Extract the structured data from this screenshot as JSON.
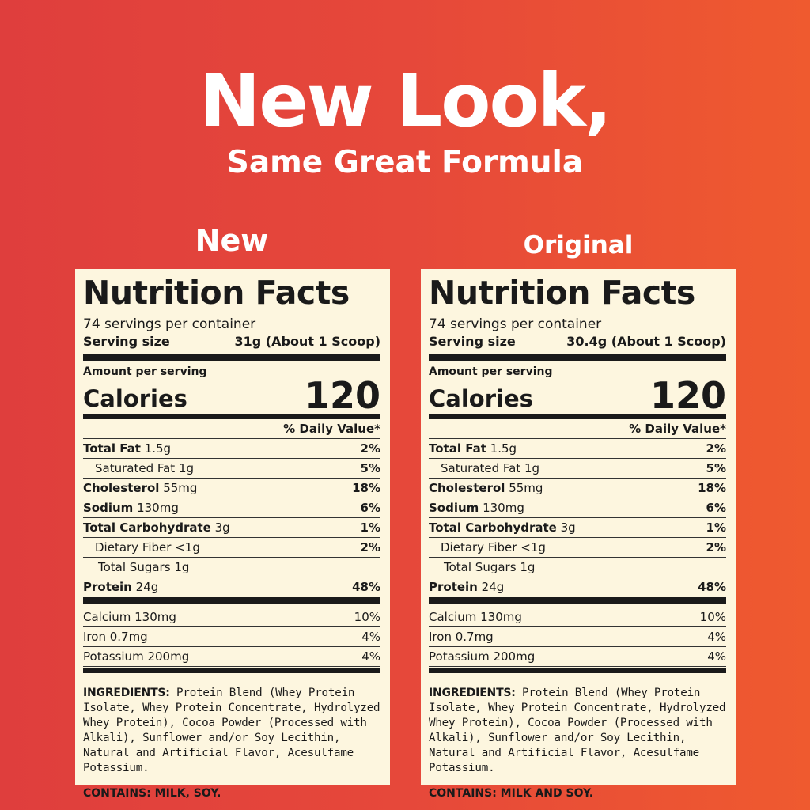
{
  "headline": "New Look,",
  "subheadline": "Same Great Formula",
  "colors": {
    "background_left": "#df3e3d",
    "background_right": "#ef5a2f",
    "label_bg": "#fdf6df"
  },
  "panels": [
    {
      "label": "New",
      "title": "Nutrition Facts",
      "servings": "74 servings per container",
      "serving_size_label": "Serving size",
      "serving_size": "31g (About 1 Scoop)",
      "amount_per_serving": "Amount per serving",
      "calories_label": "Calories",
      "calories": "120",
      "daily_value": "% Daily Value*",
      "nutrients": [
        {
          "name": "Total Fat",
          "amount": "1.5g",
          "dv": "2%",
          "bold": true,
          "indent": 0
        },
        {
          "name": "Saturated Fat",
          "amount": "1g",
          "dv": "5%",
          "bold": false,
          "indent": 1
        },
        {
          "name": "Cholesterol",
          "amount": "55mg",
          "dv": "18%",
          "bold": true,
          "indent": 0
        },
        {
          "name": "Sodium",
          "amount": "130mg",
          "dv": "6%",
          "bold": true,
          "indent": 0
        },
        {
          "name": "Total Carbohydrate",
          "amount": "3g",
          "dv": "1%",
          "bold": true,
          "indent": 0
        },
        {
          "name": "Dietary Fiber",
          "amount": "<1g",
          "dv": "2%",
          "bold": false,
          "indent": 1
        },
        {
          "name": "Total Sugars",
          "amount": "1g",
          "dv": "",
          "bold": false,
          "indent": 2
        },
        {
          "name": "Protein",
          "amount": "24g",
          "dv": "48%",
          "bold": true,
          "indent": 0
        }
      ],
      "minerals": [
        {
          "name": "Calcium 130mg",
          "dv": "10%"
        },
        {
          "name": "Iron 0.7mg",
          "dv": "4%"
        },
        {
          "name": "Potassium 200mg",
          "dv": "4%"
        }
      ],
      "ingredients_label": "INGREDIENTS:",
      "ingredients": "Protein Blend (Whey Protein Isolate, Whey Protein Concentrate, Hydrolyzed Whey Protein), Cocoa Powder (Processed with Alkali), Sunflower and/or Soy Lecithin, Natural and Artificial Flavor, Acesulfame Potassium.",
      "contains": "CONTAINS: MILK, SOY."
    },
    {
      "label": "Original",
      "title": "Nutrition Facts",
      "servings": "74 servings per container",
      "serving_size_label": "Serving size",
      "serving_size": "30.4g (About 1 Scoop)",
      "amount_per_serving": "Amount per serving",
      "calories_label": "Calories",
      "calories": "120",
      "daily_value": "% Daily Value*",
      "nutrients": [
        {
          "name": "Total Fat",
          "amount": "1.5g",
          "dv": "2%",
          "bold": true,
          "indent": 0
        },
        {
          "name": "Saturated Fat",
          "amount": "1g",
          "dv": "5%",
          "bold": false,
          "indent": 1
        },
        {
          "name": "Cholesterol",
          "amount": "55mg",
          "dv": "18%",
          "bold": true,
          "indent": 0
        },
        {
          "name": "Sodium",
          "amount": "130mg",
          "dv": "6%",
          "bold": true,
          "indent": 0
        },
        {
          "name": "Total Carbohydrate",
          "amount": "3g",
          "dv": "1%",
          "bold": true,
          "indent": 0
        },
        {
          "name": "Dietary Fiber",
          "amount": "<1g",
          "dv": "2%",
          "bold": false,
          "indent": 1
        },
        {
          "name": "Total Sugars",
          "amount": "1g",
          "dv": "",
          "bold": false,
          "indent": 2
        },
        {
          "name": "Protein",
          "amount": "24g",
          "dv": "48%",
          "bold": true,
          "indent": 0
        }
      ],
      "minerals": [
        {
          "name": "Calcium 130mg",
          "dv": "10%"
        },
        {
          "name": "Iron 0.7mg",
          "dv": "4%"
        },
        {
          "name": "Potassium 200mg",
          "dv": "4%"
        }
      ],
      "ingredients_label": "INGREDIENTS:",
      "ingredients": "Protein Blend (Whey Protein Isolate, Whey Protein Concentrate, Hydrolyzed Whey Protein), Cocoa Powder (Processed with Alkali), Sunflower and/or Soy Lecithin, Natural and Artificial Flavor, Acesulfame Potassium.",
      "contains": "CONTAINS: MILK AND SOY."
    }
  ]
}
